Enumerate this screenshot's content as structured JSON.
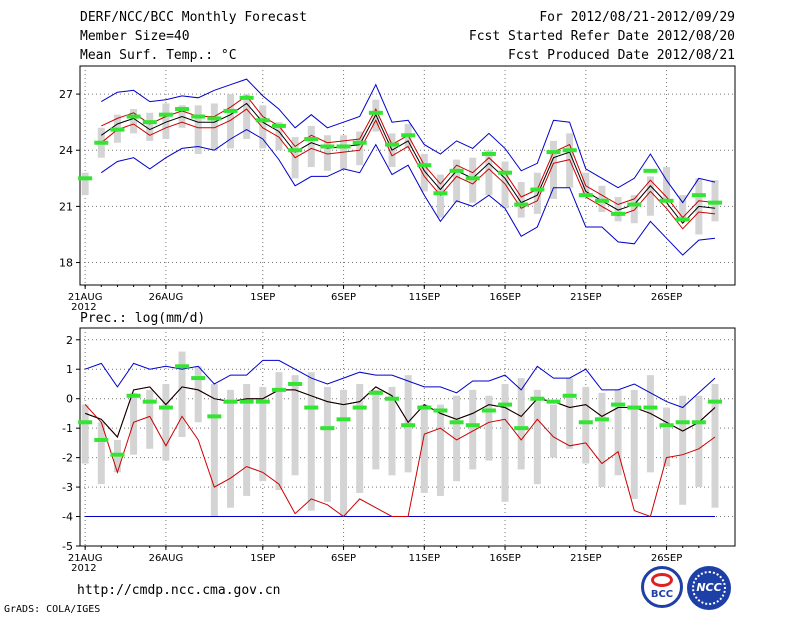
{
  "header": {
    "title": "DERF/NCC/BCC Monthly Forecast",
    "member_size": "Member Size=40",
    "variable": "Mean Surf. Temp.: °C",
    "period": "For 2012/08/21-2012/09/29",
    "fcst_started": "Fcst Started Refer Date 2012/08/20",
    "fcst_produced": "Fcst Produced Date 2012/08/21"
  },
  "footer": {
    "url": "http://cmdp.ncc.cma.gov.cn",
    "credit": "GrADS: COLA/IGES",
    "logo_left": "BCC",
    "logo_right": "NCC"
  },
  "colors": {
    "box": "#d4d4d4",
    "median": "#33e433",
    "mean": "#000000",
    "inner": "#cc0000",
    "outer": "#0000cc",
    "grid": "#777777"
  },
  "chart_data": [
    {
      "type": "boxplot-ensemble",
      "title": "Mean Surf. Temp.: °C",
      "xlabel": "",
      "ylabel": "°C",
      "ylim": [
        16.8,
        28.5
      ],
      "yticks": [
        18,
        21,
        24,
        27
      ],
      "xticks": [
        {
          "day": 1,
          "label": "21AUG",
          "sub": "2012"
        },
        {
          "day": 6,
          "label": "26AUG"
        },
        {
          "day": 12,
          "label": "1SEP"
        },
        {
          "day": 17,
          "label": "6SEP"
        },
        {
          "day": 22,
          "label": "11SEP"
        },
        {
          "day": 27,
          "label": "16SEP"
        },
        {
          "day": 32,
          "label": "21SEP"
        },
        {
          "day": 37,
          "label": "26SEP"
        }
      ],
      "days": [
        1,
        2,
        3,
        4,
        5,
        6,
        7,
        8,
        9,
        10,
        11,
        12,
        13,
        14,
        15,
        16,
        17,
        18,
        19,
        20,
        21,
        22,
        23,
        24,
        25,
        26,
        27,
        28,
        29,
        30,
        31,
        32,
        33,
        34,
        35,
        36,
        37,
        38,
        39,
        40
      ],
      "box_low": [
        21.6,
        23.6,
        24.4,
        24.9,
        24.5,
        24.6,
        25.2,
        23.8,
        24.0,
        24.1,
        24.6,
        24.1,
        24.0,
        22.5,
        23.1,
        22.9,
        23.0,
        23.2,
        25.0,
        23.1,
        24.1,
        21.8,
        20.4,
        21.2,
        21.2,
        21.6,
        20.9,
        20.4,
        20.6,
        21.4,
        22.0,
        21.7,
        20.7,
        20.2,
        20.1,
        20.5,
        21.3,
        20.3,
        19.5,
        20.2
      ],
      "box_high": [
        22.8,
        25.2,
        25.9,
        26.2,
        26.0,
        26.5,
        26.4,
        26.4,
        26.5,
        27.0,
        27.0,
        26.4,
        25.5,
        24.7,
        25.3,
        24.8,
        24.8,
        25.0,
        26.7,
        24.9,
        25.4,
        23.8,
        22.7,
        23.5,
        23.6,
        24.0,
        23.4,
        22.3,
        22.8,
        24.5,
        24.9,
        22.8,
        22.1,
        21.5,
        21.6,
        22.6,
        23.1,
        21.6,
        22.5,
        22.4
      ],
      "median": [
        22.5,
        24.4,
        25.1,
        25.8,
        25.5,
        25.9,
        26.2,
        25.8,
        25.7,
        26.1,
        26.8,
        25.6,
        25.3,
        24.0,
        24.6,
        24.2,
        24.2,
        24.4,
        26.0,
        24.3,
        24.8,
        23.2,
        21.7,
        22.9,
        22.5,
        23.8,
        22.8,
        21.1,
        21.9,
        23.9,
        24.0,
        21.6,
        21.3,
        20.6,
        21.1,
        22.9,
        21.3,
        20.3,
        21.6,
        21.2
      ],
      "mean": [
        null,
        24.8,
        25.4,
        25.7,
        25.1,
        25.5,
        25.8,
        25.5,
        25.5,
        25.9,
        26.5,
        25.5,
        25.0,
        23.9,
        24.4,
        24.1,
        24.2,
        24.3,
        25.9,
        24.0,
        24.5,
        22.9,
        21.9,
        22.9,
        22.5,
        23.3,
        22.5,
        21.2,
        21.6,
        23.6,
        23.9,
        21.8,
        21.3,
        20.8,
        21.1,
        22.1,
        21.2,
        20.1,
        21.0,
        20.9
      ],
      "inner_high": [
        null,
        25.3,
        25.7,
        26.0,
        25.4,
        25.8,
        26.1,
        25.8,
        25.8,
        26.3,
        26.9,
        25.8,
        25.3,
        24.2,
        24.8,
        24.4,
        24.5,
        24.6,
        26.2,
        24.3,
        24.8,
        23.2,
        22.2,
        23.2,
        22.8,
        23.6,
        22.8,
        21.5,
        21.9,
        23.9,
        24.3,
        22.1,
        21.6,
        21.1,
        21.4,
        22.4,
        21.5,
        20.4,
        21.3,
        21.2
      ],
      "inner_low": [
        null,
        24.4,
        25.1,
        25.4,
        24.8,
        25.2,
        25.5,
        25.2,
        25.2,
        25.6,
        26.2,
        25.2,
        24.7,
        23.6,
        24.1,
        23.8,
        23.9,
        24.0,
        25.6,
        23.7,
        24.2,
        22.6,
        21.6,
        22.6,
        22.2,
        23.0,
        22.2,
        20.9,
        21.3,
        23.3,
        23.5,
        21.5,
        21.0,
        20.5,
        20.8,
        21.8,
        20.9,
        19.8,
        20.7,
        20.6
      ],
      "outer_high": [
        null,
        26.6,
        27.1,
        27.2,
        26.6,
        26.7,
        26.9,
        26.8,
        27.2,
        27.5,
        27.8,
        26.9,
        26.2,
        25.2,
        25.9,
        25.2,
        25.5,
        25.8,
        27.5,
        25.5,
        25.6,
        24.3,
        23.8,
        24.5,
        24.1,
        24.9,
        24.1,
        22.9,
        23.3,
        25.6,
        25.5,
        23.0,
        22.5,
        22.0,
        22.5,
        23.8,
        22.4,
        21.2,
        22.5,
        22.3
      ],
      "outer_low": [
        null,
        22.8,
        23.4,
        23.6,
        23.0,
        23.6,
        24.1,
        24.2,
        24.0,
        24.6,
        25.1,
        24.6,
        23.5,
        22.1,
        22.6,
        22.6,
        23.0,
        22.8,
        24.3,
        22.7,
        23.2,
        21.6,
        20.2,
        21.3,
        21.0,
        21.6,
        20.9,
        19.4,
        19.9,
        22.0,
        22.0,
        19.9,
        19.9,
        19.1,
        19.0,
        20.2,
        19.3,
        18.4,
        19.2,
        19.3
      ]
    },
    {
      "type": "boxplot-ensemble",
      "title": "Prec.: log(mm/d)",
      "xlabel": "",
      "ylabel": "log(mm/d)",
      "ylim": [
        -5,
        2.4
      ],
      "yticks": [
        -5,
        -4,
        -3,
        -2,
        -1,
        0,
        1,
        2
      ],
      "xticks": [
        {
          "day": 1,
          "label": "21AUG",
          "sub": "2012"
        },
        {
          "day": 6,
          "label": "26AUG"
        },
        {
          "day": 12,
          "label": "1SEP"
        },
        {
          "day": 17,
          "label": "6SEP"
        },
        {
          "day": 22,
          "label": "11SEP"
        },
        {
          "day": 27,
          "label": "16SEP"
        },
        {
          "day": 32,
          "label": "21SEP"
        },
        {
          "day": 37,
          "label": "26SEP"
        }
      ],
      "days": [
        1,
        2,
        3,
        4,
        5,
        6,
        7,
        8,
        9,
        10,
        11,
        12,
        13,
        14,
        15,
        16,
        17,
        18,
        19,
        20,
        21,
        22,
        23,
        24,
        25,
        26,
        27,
        28,
        29,
        30,
        31,
        32,
        33,
        34,
        35,
        36,
        37,
        38,
        39,
        40
      ],
      "box_low": [
        -2.2,
        -2.9,
        -2.5,
        -1.9,
        -1.7,
        -2.1,
        -1.3,
        -0.8,
        -4.0,
        -3.7,
        -3.3,
        -2.8,
        -3.1,
        -2.6,
        -3.8,
        -3.5,
        -4.0,
        -3.2,
        -2.4,
        -2.6,
        -2.5,
        -3.2,
        -3.3,
        -2.8,
        -2.4,
        -2.1,
        -3.5,
        -2.4,
        -2.9,
        -2.0,
        -1.7,
        -2.2,
        -3.0,
        -2.6,
        -3.4,
        -2.5,
        -2.3,
        -3.6,
        -3.0,
        -3.7
      ],
      "box_high": [
        -0.2,
        -0.8,
        -1.4,
        0.2,
        0.3,
        0.5,
        1.6,
        1.1,
        0.5,
        0.3,
        0.5,
        0.4,
        0.9,
        0.8,
        0.9,
        0.4,
        0.3,
        0.5,
        0.3,
        0.4,
        0.8,
        -0.2,
        -0.2,
        0.1,
        0.3,
        0.1,
        0.5,
        0.7,
        0.3,
        -0.2,
        0.7,
        0.4,
        0.2,
        0.3,
        0.3,
        0.8,
        -0.3,
        0.1,
        0.1,
        0.5
      ],
      "median": [
        -0.8,
        -1.4,
        -1.9,
        0.1,
        -0.1,
        -0.3,
        1.1,
        0.7,
        -0.6,
        -0.1,
        -0.1,
        -0.1,
        0.3,
        0.5,
        -0.3,
        -1.0,
        -0.7,
        -0.3,
        0.2,
        0.0,
        -0.9,
        -0.3,
        -0.4,
        -0.8,
        -0.9,
        -0.4,
        -0.2,
        -1.0,
        0.0,
        -0.1,
        0.1,
        -0.8,
        -0.7,
        -0.2,
        -0.3,
        -0.3,
        -0.9,
        -0.8,
        -0.8,
        -0.1
      ],
      "mean": [
        -0.5,
        -0.7,
        -1.3,
        0.3,
        0.4,
        -0.2,
        0.4,
        0.3,
        0.0,
        -0.1,
        0.0,
        0.0,
        0.3,
        0.3,
        0.1,
        -0.1,
        -0.2,
        -0.1,
        0.4,
        0.1,
        -0.8,
        -0.2,
        -0.5,
        -0.7,
        -0.5,
        -0.2,
        -0.3,
        -0.6,
        0.0,
        -0.1,
        -0.3,
        -0.2,
        -0.6,
        -0.3,
        -0.3,
        -0.5,
        -0.8,
        -1.1,
        -0.8,
        -0.3
      ],
      "inner_high": [
        -0.5,
        -0.7,
        -1.3,
        0.3,
        0.4,
        -0.2,
        0.4,
        0.3,
        0.0,
        -0.1,
        0.0,
        0.0,
        0.3,
        0.3,
        0.1,
        -0.1,
        -0.2,
        -0.1,
        0.4,
        0.1,
        -0.8,
        -0.2,
        -0.5,
        -0.7,
        -0.5,
        -0.2,
        -0.3,
        -0.6,
        0.0,
        -0.1,
        -0.3,
        -0.2,
        -0.6,
        -0.3,
        -0.3,
        -0.5,
        -0.8,
        -1.1,
        -0.8,
        -0.3
      ],
      "inner_low": [
        -0.2,
        -0.8,
        -2.5,
        -0.8,
        -0.6,
        -1.6,
        -0.6,
        -1.4,
        -3.0,
        -2.7,
        -2.3,
        -2.5,
        -2.9,
        -3.9,
        -3.4,
        -3.6,
        -4.0,
        -3.4,
        -3.7,
        -4.0,
        -4.0,
        -1.2,
        -1.0,
        -1.4,
        -1.1,
        -0.8,
        -0.7,
        -1.4,
        -0.7,
        -1.3,
        -1.6,
        -1.5,
        -2.2,
        -1.8,
        -3.8,
        -4.0,
        -2.0,
        -1.9,
        -1.7,
        -1.3
      ],
      "outer_high": [
        1.0,
        1.2,
        0.4,
        1.2,
        1.0,
        1.1,
        1.0,
        1.1,
        0.5,
        0.8,
        0.8,
        1.3,
        1.3,
        1.0,
        0.7,
        0.5,
        0.7,
        0.9,
        0.8,
        0.8,
        0.6,
        0.4,
        0.4,
        0.2,
        0.6,
        0.6,
        0.8,
        0.3,
        1.1,
        0.7,
        0.7,
        1.0,
        0.3,
        0.3,
        0.5,
        0.2,
        -0.1,
        -0.3,
        0.2,
        0.7
      ],
      "outer_low": [
        -4.0,
        -4.0,
        -4.0,
        -4.0,
        -4.0,
        -4.0,
        -4.0,
        -4.0,
        -4.0,
        -4.0,
        -4.0,
        -4.0,
        -4.0,
        -4.0,
        -4.0,
        -4.0,
        -4.0,
        -4.0,
        -4.0,
        -4.0,
        -4.0,
        -4.0,
        -4.0,
        -4.0,
        -4.0,
        -4.0,
        -4.0,
        -4.0,
        -4.0,
        -4.0,
        -4.0,
        -4.0,
        -4.0,
        -4.0,
        -4.0,
        -4.0,
        -4.0,
        -4.0,
        -4.0,
        -4.0
      ]
    }
  ],
  "lower_panel_label": "Prec.: log(mm/d)"
}
